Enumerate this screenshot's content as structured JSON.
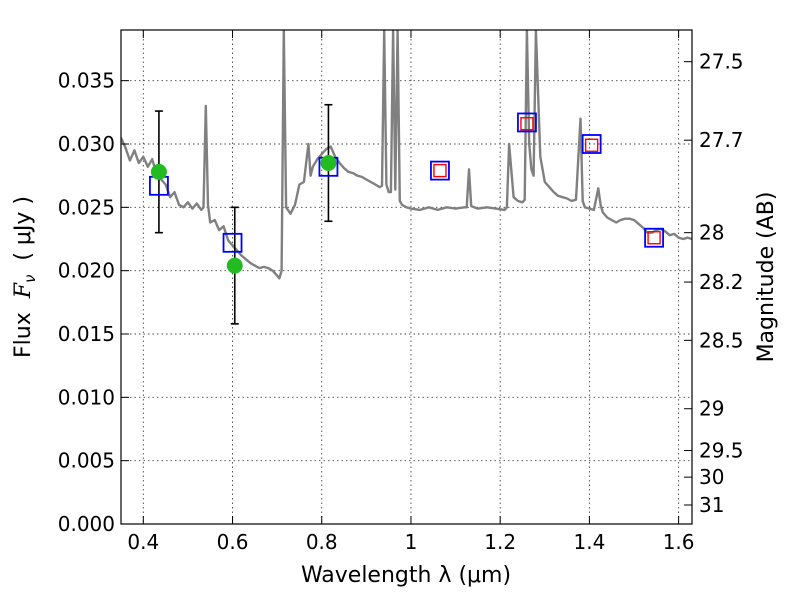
{
  "chart_data": {
    "type": "scatter",
    "title": "",
    "xlabel": "Wavelength  λ (μm)",
    "ylabel": "Flux  F_ν  ( μJy )",
    "ylabel_parts": {
      "prefix": "Flux  ",
      "symbol": "F",
      "subscript": "ν",
      "suffix": "  ( μJy )"
    },
    "y2label": "Magnitude (AB)",
    "xlim": [
      0.35,
      1.63
    ],
    "ylim": [
      0.0,
      0.039
    ],
    "grid": true,
    "x_ticks": [
      0.4,
      0.6,
      0.8,
      1.0,
      1.2,
      1.4,
      1.6
    ],
    "x_tick_labels": [
      "0.4",
      "0.6",
      "0.8",
      "1",
      "1.2",
      "1.4",
      "1.6"
    ],
    "y_ticks": [
      0.0,
      0.005,
      0.01,
      0.015,
      0.02,
      0.025,
      0.03,
      0.035
    ],
    "y_tick_labels": [
      "0.000",
      "0.005",
      "0.010",
      "0.015",
      "0.020",
      "0.025",
      "0.030",
      "0.035"
    ],
    "y2_ticks": [
      {
        "label": "27.5",
        "flux": 0.0365
      },
      {
        "label": "27.7",
        "flux": 0.0303
      },
      {
        "label": "28",
        "flux": 0.023
      },
      {
        "label": "28.2",
        "flux": 0.0191
      },
      {
        "label": "28.5",
        "flux": 0.0145
      },
      {
        "label": "29",
        "flux": 0.0091
      },
      {
        "label": "29.5",
        "flux": 0.0058
      },
      {
        "label": "30",
        "flux": 0.0037
      },
      {
        "label": "31",
        "flux": 0.0015
      }
    ],
    "colors": {
      "spectrum": "#808080",
      "observed": "#22bb22",
      "model_blue": "#0000ff",
      "model_red": "#ff0000",
      "errorbar": "#000000",
      "grid": "#444444"
    },
    "series": [
      {
        "type": "line",
        "points": [
          [
            0.35,
            0.0305
          ],
          [
            0.36,
            0.0297
          ],
          [
            0.37,
            0.0287
          ],
          [
            0.38,
            0.0295
          ],
          [
            0.39,
            0.0285
          ],
          [
            0.4,
            0.029
          ],
          [
            0.41,
            0.0282
          ],
          [
            0.42,
            0.0288
          ],
          [
            0.43,
            0.0276
          ],
          [
            0.44,
            0.0272
          ],
          [
            0.45,
            0.0268
          ],
          [
            0.46,
            0.0258
          ],
          [
            0.47,
            0.0262
          ],
          [
            0.48,
            0.0252
          ],
          [
            0.49,
            0.025
          ],
          [
            0.5,
            0.0254
          ],
          [
            0.51,
            0.0249
          ],
          [
            0.52,
            0.0253
          ],
          [
            0.53,
            0.0248
          ],
          [
            0.535,
            0.025
          ],
          [
            0.54,
            0.033
          ],
          [
            0.545,
            0.0252
          ],
          [
            0.55,
            0.0238
          ],
          [
            0.56,
            0.024
          ],
          [
            0.57,
            0.0232
          ],
          [
            0.58,
            0.0235
          ],
          [
            0.59,
            0.0224
          ],
          [
            0.6,
            0.022
          ],
          [
            0.61,
            0.0216
          ],
          [
            0.62,
            0.0212
          ],
          [
            0.63,
            0.0209
          ],
          [
            0.64,
            0.0206
          ],
          [
            0.65,
            0.0204
          ],
          [
            0.66,
            0.0202
          ],
          [
            0.67,
            0.0203
          ],
          [
            0.68,
            0.0202
          ],
          [
            0.69,
            0.02
          ],
          [
            0.7,
            0.0196
          ],
          [
            0.705,
            0.0194
          ],
          [
            0.71,
            0.02
          ],
          [
            0.715,
            0.039
          ],
          [
            0.72,
            0.025
          ],
          [
            0.73,
            0.0245
          ],
          [
            0.74,
            0.0252
          ],
          [
            0.75,
            0.0268
          ],
          [
            0.76,
            0.027
          ],
          [
            0.77,
            0.03
          ],
          [
            0.775,
            0.0275
          ],
          [
            0.78,
            0.0282
          ],
          [
            0.79,
            0.0288
          ],
          [
            0.8,
            0.0292
          ],
          [
            0.81,
            0.0296
          ],
          [
            0.82,
            0.0298
          ],
          [
            0.83,
            0.029
          ],
          [
            0.84,
            0.0285
          ],
          [
            0.85,
            0.0281
          ],
          [
            0.86,
            0.0278
          ],
          [
            0.87,
            0.0277
          ],
          [
            0.88,
            0.0275
          ],
          [
            0.89,
            0.0274
          ],
          [
            0.9,
            0.0272
          ],
          [
            0.91,
            0.027
          ],
          [
            0.92,
            0.0268
          ],
          [
            0.93,
            0.0266
          ],
          [
            0.935,
            0.0267
          ],
          [
            0.94,
            0.039
          ],
          [
            0.945,
            0.0268
          ],
          [
            0.95,
            0.0262
          ],
          [
            0.955,
            0.0262
          ],
          [
            0.96,
            0.039
          ],
          [
            0.965,
            0.0264
          ],
          [
            0.97,
            0.039
          ],
          [
            0.975,
            0.0255
          ],
          [
            0.98,
            0.0252
          ],
          [
            0.99,
            0.025
          ],
          [
            1.0,
            0.0249
          ],
          [
            1.02,
            0.0248
          ],
          [
            1.04,
            0.025
          ],
          [
            1.06,
            0.0248
          ],
          [
            1.08,
            0.025
          ],
          [
            1.1,
            0.0249
          ],
          [
            1.12,
            0.025
          ],
          [
            1.125,
            0.025
          ],
          [
            1.13,
            0.028
          ],
          [
            1.135,
            0.0251
          ],
          [
            1.15,
            0.0249
          ],
          [
            1.17,
            0.025
          ],
          [
            1.19,
            0.0249
          ],
          [
            1.21,
            0.0248
          ],
          [
            1.215,
            0.025
          ],
          [
            1.22,
            0.03
          ],
          [
            1.23,
            0.0258
          ],
          [
            1.24,
            0.0255
          ],
          [
            1.25,
            0.0254
          ],
          [
            1.255,
            0.0256
          ],
          [
            1.26,
            0.039
          ],
          [
            1.265,
            0.03
          ],
          [
            1.27,
            0.028
          ],
          [
            1.275,
            0.0275
          ],
          [
            1.28,
            0.039
          ],
          [
            1.29,
            0.029
          ],
          [
            1.3,
            0.027
          ],
          [
            1.31,
            0.0266
          ],
          [
            1.32,
            0.0262
          ],
          [
            1.33,
            0.0259
          ],
          [
            1.34,
            0.0258
          ],
          [
            1.35,
            0.0257
          ],
          [
            1.36,
            0.0255
          ],
          [
            1.37,
            0.0256
          ],
          [
            1.38,
            0.032
          ],
          [
            1.385,
            0.0255
          ],
          [
            1.39,
            0.025
          ],
          [
            1.4,
            0.0249
          ],
          [
            1.41,
            0.0248
          ],
          [
            1.42,
            0.0265
          ],
          [
            1.425,
            0.0252
          ],
          [
            1.43,
            0.0246
          ],
          [
            1.44,
            0.0242
          ],
          [
            1.45,
            0.024
          ],
          [
            1.46,
            0.0238
          ],
          [
            1.47,
            0.024
          ],
          [
            1.48,
            0.0241
          ],
          [
            1.49,
            0.0241
          ],
          [
            1.5,
            0.024
          ],
          [
            1.51,
            0.0237
          ],
          [
            1.52,
            0.0234
          ],
          [
            1.53,
            0.023
          ],
          [
            1.54,
            0.023
          ],
          [
            1.55,
            0.0232
          ],
          [
            1.56,
            0.0233
          ],
          [
            1.57,
            0.0231
          ],
          [
            1.58,
            0.0228
          ],
          [
            1.59,
            0.0229
          ],
          [
            1.6,
            0.0226
          ],
          [
            1.61,
            0.0225
          ],
          [
            1.62,
            0.0226
          ],
          [
            1.63,
            0.0225
          ]
        ]
      },
      {
        "type": "points",
        "marker": "circle",
        "points": [
          {
            "x": 0.435,
            "y": 0.0278,
            "err": 0.0048
          },
          {
            "x": 0.605,
            "y": 0.0204,
            "err": 0.0046
          },
          {
            "x": 0.815,
            "y": 0.0285,
            "err": 0.0046
          }
        ]
      },
      {
        "type": "points",
        "marker": "square-blue",
        "points": [
          {
            "x": 0.435,
            "y": 0.0267
          },
          {
            "x": 0.6,
            "y": 0.0222
          },
          {
            "x": 0.815,
            "y": 0.0282
          },
          {
            "x": 1.065,
            "y": 0.0279
          },
          {
            "x": 1.26,
            "y": 0.0317
          },
          {
            "x": 1.405,
            "y": 0.03
          },
          {
            "x": 1.545,
            "y": 0.0226
          }
        ]
      },
      {
        "type": "points",
        "marker": "square-red",
        "points": [
          {
            "x": 1.065,
            "y": 0.0279
          },
          {
            "x": 1.26,
            "y": 0.0316
          },
          {
            "x": 1.405,
            "y": 0.0299
          },
          {
            "x": 1.545,
            "y": 0.0226
          }
        ]
      }
    ]
  }
}
